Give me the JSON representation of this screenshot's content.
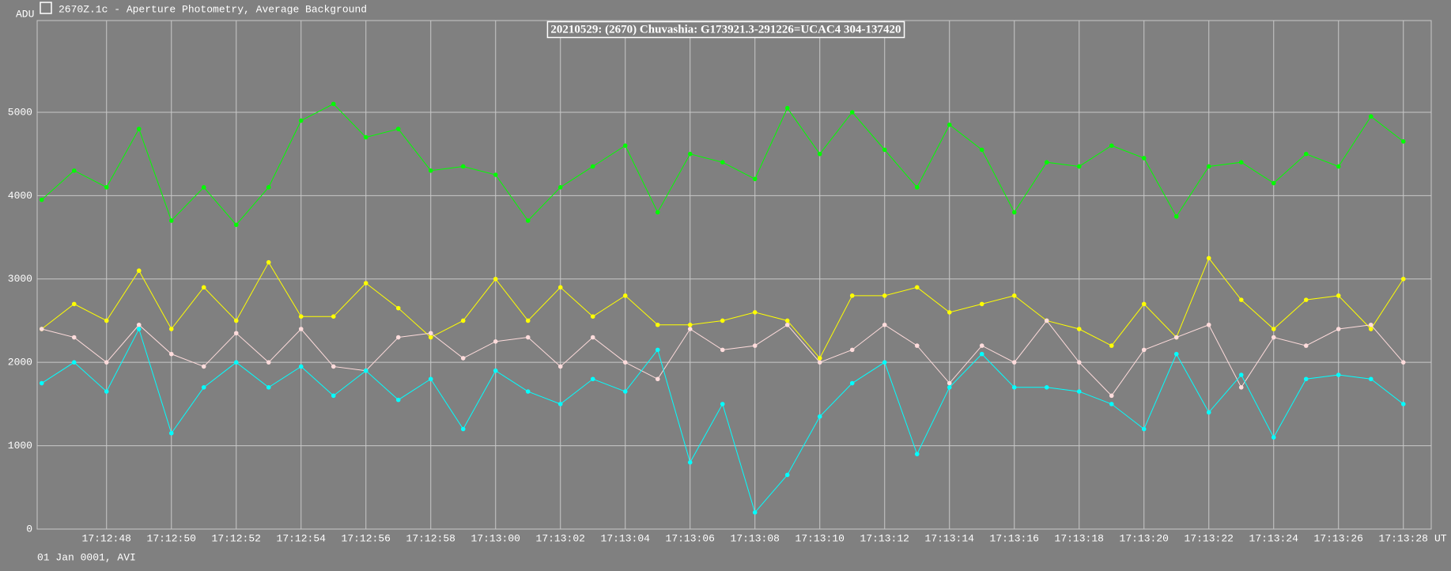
{
  "chart_data": {
    "type": "line",
    "window_title": "2670Z.1c - Aperture Photometry, Average Background",
    "title": "20210529: (2670) Chuvashia: G173921.3-291226=UCAC4 304-137420",
    "y_unit": "ADU",
    "x_unit": "UT",
    "footer": "01 Jan 0001, AVI",
    "grid": true,
    "ylim": [
      0,
      6100
    ],
    "yticks": [
      0,
      1000,
      2000,
      3000,
      4000,
      5000
    ],
    "xlim": [
      61965.86,
      62008.86
    ],
    "xticks": [
      {
        "value": 61968,
        "label": "17:12:48"
      },
      {
        "value": 61970,
        "label": "17:12:50"
      },
      {
        "value": 61972,
        "label": "17:12:52"
      },
      {
        "value": 61974,
        "label": "17:12:54"
      },
      {
        "value": 61976,
        "label": "17:12:56"
      },
      {
        "value": 61978,
        "label": "17:12:58"
      },
      {
        "value": 61980,
        "label": "17:13:00"
      },
      {
        "value": 61982,
        "label": "17:13:02"
      },
      {
        "value": 61984,
        "label": "17:13:04"
      },
      {
        "value": 61986,
        "label": "17:13:06"
      },
      {
        "value": 61988,
        "label": "17:13:08"
      },
      {
        "value": 61990,
        "label": "17:13:10"
      },
      {
        "value": 61992,
        "label": "17:13:12"
      },
      {
        "value": 61994,
        "label": "17:13:14"
      },
      {
        "value": 61996,
        "label": "17:13:16"
      },
      {
        "value": 61998,
        "label": "17:13:18"
      },
      {
        "value": 62000,
        "label": "17:13:20"
      },
      {
        "value": 62002,
        "label": "17:13:22"
      },
      {
        "value": 62004,
        "label": "17:13:24"
      },
      {
        "value": 62006,
        "label": "17:13:26"
      },
      {
        "value": 62008,
        "label": "17:13:28"
      }
    ],
    "x": [
      61966,
      61967,
      61968,
      61969,
      61970,
      61971,
      61972,
      61973,
      61974,
      61975,
      61976,
      61977,
      61978,
      61979,
      61980,
      61981,
      61982,
      61983,
      61984,
      61985,
      61986,
      61987,
      61988,
      61989,
      61990,
      61991,
      61992,
      61993,
      61994,
      61995,
      61996,
      61997,
      61998,
      61999,
      62000,
      62001,
      62002,
      62003,
      62004,
      62005,
      62006,
      62007,
      62008
    ],
    "series": [
      {
        "color": "#00ff00",
        "values": [
          3950,
          4300,
          4100,
          4800,
          3700,
          4100,
          3650,
          4100,
          4900,
          5100,
          4700,
          4800,
          4300,
          4350,
          4250,
          3700,
          4100,
          4350,
          4600,
          3800,
          4500,
          4400,
          4200,
          5050,
          4500,
          5000,
          4550,
          4100,
          4850,
          4550,
          3800,
          4400,
          4350,
          4600,
          4450,
          3750,
          4350,
          4400,
          4150,
          4500,
          4350,
          4950,
          4650
        ]
      },
      {
        "color": "#ffff00",
        "values": [
          2400,
          2700,
          2500,
          3100,
          2400,
          2900,
          2500,
          3200,
          2550,
          2550,
          2950,
          2650,
          2300,
          2500,
          3000,
          2500,
          2900,
          2550,
          2800,
          2450,
          2450,
          2500,
          2600,
          2500,
          2050,
          2800,
          2800,
          2900,
          2600,
          2700,
          2800,
          2500,
          2400,
          2200,
          2700,
          2300,
          3250,
          2750,
          2400,
          2750,
          2800,
          2400,
          3000
        ]
      },
      {
        "color": "#ffdcdc",
        "values": [
          2400,
          2300,
          2000,
          2450,
          2100,
          1950,
          2350,
          2000,
          2400,
          1950,
          1900,
          2300,
          2350,
          2050,
          2250,
          2300,
          1950,
          2300,
          2000,
          1800,
          2400,
          2150,
          2200,
          2450,
          2000,
          2150,
          2450,
          2200,
          1750,
          2200,
          2000,
          2500,
          2000,
          1600,
          2150,
          2300,
          2450,
          1700,
          2300,
          2200,
          2400,
          2450,
          2000
        ]
      },
      {
        "color": "#00ffff",
        "values": [
          1750,
          2000,
          1650,
          2400,
          1150,
          1700,
          2000,
          1700,
          1950,
          1600,
          1900,
          1550,
          1800,
          1200,
          1900,
          1650,
          1500,
          1800,
          1650,
          2150,
          800,
          1500,
          200,
          650,
          1350,
          1750,
          2000,
          900,
          1700,
          2100,
          1700,
          1700,
          1650,
          1500,
          1200,
          2100,
          1400,
          1850,
          1100,
          1800,
          1850,
          1800,
          1500
        ]
      }
    ]
  }
}
